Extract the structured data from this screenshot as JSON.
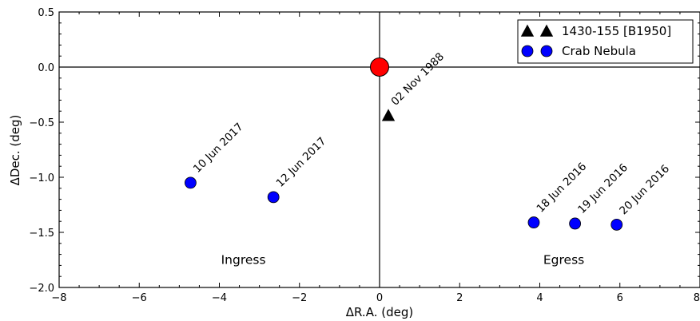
{
  "chart_data": {
    "type": "scatter",
    "xlabel": "ΔR.A. (deg)",
    "ylabel": "ΔDec. (deg)",
    "xlim": [
      -8,
      8
    ],
    "ylim": [
      -2.0,
      0.5
    ],
    "x_ticks": [
      -8,
      -6,
      -4,
      -2,
      0,
      2,
      4,
      6,
      8
    ],
    "x_tick_labels": [
      "−8",
      "−6",
      "−4",
      "−2",
      "0",
      "2",
      "4",
      "6",
      "8"
    ],
    "y_ticks": [
      0.5,
      0.0,
      -0.5,
      -1.0,
      -1.5,
      -2.0
    ],
    "y_tick_labels": [
      "0.5",
      "0.0",
      "−0.5",
      "−1.0",
      "−1.5",
      "−2.0"
    ],
    "grid": false,
    "legend_position": "top-right",
    "reference_lines": {
      "x": 0,
      "y": 0
    },
    "sun": {
      "x": 0,
      "y": 0,
      "color": "#ff0000"
    },
    "series": [
      {
        "name": "1430-155 [B1950]",
        "marker": "triangle",
        "color": "#000000",
        "points": [
          {
            "x": 0.22,
            "y": -0.44,
            "label": "02 Nov 1988"
          }
        ]
      },
      {
        "name": "Crab Nebula",
        "marker": "circle",
        "color": "#0000ff",
        "points": [
          {
            "x": -4.72,
            "y": -1.05,
            "label": "10 Jun 2017"
          },
          {
            "x": -2.65,
            "y": -1.18,
            "label": "12 Jun 2017"
          },
          {
            "x": 3.85,
            "y": -1.41,
            "label": "18 Jun 2016"
          },
          {
            "x": 4.88,
            "y": -1.42,
            "label": "19 Jun 2016"
          },
          {
            "x": 5.92,
            "y": -1.43,
            "label": "20 Jun 2016"
          }
        ]
      }
    ],
    "annotations": [
      {
        "text": "Ingress",
        "x": -3.4,
        "y": -1.75
      },
      {
        "text": "Egress",
        "x": 4.6,
        "y": -1.75
      }
    ]
  }
}
